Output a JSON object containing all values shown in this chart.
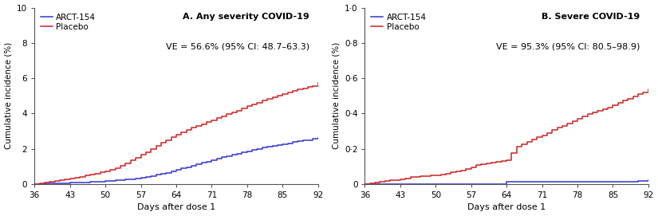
{
  "panel_a": {
    "title": "A. Any severity COVID-19",
    "ve_text": "VE = 56.6% (95% CI: 48.7–63.3)",
    "ylabel": "Cumulative incidence (%)",
    "xlabel": "Days after dose 1",
    "xlim": [
      36,
      92
    ],
    "ylim": [
      0,
      10
    ],
    "yticks": [
      0,
      2,
      4,
      6,
      8,
      10
    ],
    "ytick_labels": [
      "0",
      "2",
      "4",
      "6",
      "8",
      "10"
    ],
    "xticks": [
      36,
      43,
      50,
      57,
      64,
      71,
      78,
      85,
      92
    ],
    "vaccine_color": "#3333cc",
    "placebo_color": "#cc2222",
    "vaccine_label": "ARCT-154",
    "placebo_label": "Placebo",
    "vaccine_x": [
      36,
      37,
      38,
      39,
      40,
      41,
      42,
      43,
      44,
      45,
      46,
      47,
      48,
      49,
      50,
      51,
      52,
      53,
      54,
      55,
      56,
      57,
      58,
      59,
      60,
      61,
      62,
      63,
      64,
      65,
      66,
      67,
      68,
      69,
      70,
      71,
      72,
      73,
      74,
      75,
      76,
      77,
      78,
      79,
      80,
      81,
      82,
      83,
      84,
      85,
      86,
      87,
      88,
      89,
      90,
      91,
      92
    ],
    "vaccine_y": [
      0.0,
      0.01,
      0.02,
      0.03,
      0.04,
      0.05,
      0.06,
      0.07,
      0.08,
      0.09,
      0.1,
      0.11,
      0.13,
      0.14,
      0.16,
      0.18,
      0.2,
      0.22,
      0.25,
      0.28,
      0.31,
      0.35,
      0.4,
      0.46,
      0.52,
      0.58,
      0.64,
      0.72,
      0.8,
      0.88,
      0.96,
      1.04,
      1.12,
      1.2,
      1.28,
      1.36,
      1.44,
      1.52,
      1.59,
      1.65,
      1.72,
      1.79,
      1.86,
      1.93,
      1.99,
      2.05,
      2.11,
      2.17,
      2.22,
      2.27,
      2.32,
      2.37,
      2.42,
      2.46,
      2.5,
      2.55,
      2.6
    ],
    "placebo_x": [
      36,
      37,
      38,
      39,
      40,
      41,
      42,
      43,
      44,
      45,
      46,
      47,
      48,
      49,
      50,
      51,
      52,
      53,
      54,
      55,
      56,
      57,
      58,
      59,
      60,
      61,
      62,
      63,
      64,
      65,
      66,
      67,
      68,
      69,
      70,
      71,
      72,
      73,
      74,
      75,
      76,
      77,
      78,
      79,
      80,
      81,
      82,
      83,
      84,
      85,
      86,
      87,
      88,
      89,
      90,
      91,
      92
    ],
    "placebo_y": [
      0.0,
      0.05,
      0.09,
      0.13,
      0.17,
      0.21,
      0.25,
      0.3,
      0.36,
      0.42,
      0.48,
      0.54,
      0.6,
      0.66,
      0.72,
      0.82,
      0.92,
      1.04,
      1.18,
      1.33,
      1.48,
      1.65,
      1.82,
      2.0,
      2.18,
      2.35,
      2.5,
      2.65,
      2.8,
      2.95,
      3.07,
      3.18,
      3.29,
      3.4,
      3.51,
      3.63,
      3.74,
      3.85,
      3.95,
      4.05,
      4.16,
      4.28,
      4.4,
      4.51,
      4.62,
      4.72,
      4.82,
      4.91,
      5.0,
      5.1,
      5.18,
      5.27,
      5.35,
      5.43,
      5.5,
      5.57,
      5.72
    ]
  },
  "panel_b": {
    "title": "B. Severe COVID-19",
    "ve_text": "VE = 95.3% (95% CI: 80.5–98.9)",
    "ylabel": "Cumulative incidence (%)",
    "xlabel": "Days after dose 1",
    "xlim": [
      36,
      92
    ],
    "ylim": [
      0,
      1.0
    ],
    "yticks": [
      0,
      0.2,
      0.4,
      0.6,
      0.8,
      1.0
    ],
    "ytick_labels": [
      "0",
      "0·2",
      "0·4",
      "0·6",
      "0·8",
      "1·0"
    ],
    "xticks": [
      36,
      43,
      50,
      57,
      64,
      71,
      78,
      85,
      92
    ],
    "vaccine_color": "#3333cc",
    "placebo_color": "#cc2222",
    "vaccine_label": "ARCT-154",
    "placebo_label": "Placebo",
    "vaccine_x": [
      36,
      37,
      38,
      39,
      40,
      41,
      42,
      43,
      44,
      45,
      46,
      47,
      48,
      49,
      50,
      51,
      52,
      53,
      54,
      55,
      56,
      57,
      58,
      59,
      60,
      61,
      62,
      63,
      64,
      65,
      66,
      67,
      68,
      69,
      70,
      71,
      72,
      73,
      74,
      75,
      76,
      77,
      78,
      79,
      80,
      81,
      82,
      83,
      84,
      85,
      86,
      87,
      88,
      89,
      90,
      91,
      92
    ],
    "vaccine_y": [
      0.0,
      0.0,
      0.0,
      0.0,
      0.0,
      0.0,
      0.0,
      0.0,
      0.0,
      0.0,
      0.0,
      0.0,
      0.0,
      0.0,
      0.0,
      0.0,
      0.0,
      0.0,
      0.0,
      0.0,
      0.0,
      0.0,
      0.0,
      0.0,
      0.0,
      0.0,
      0.0,
      0.0,
      0.012,
      0.012,
      0.012,
      0.012,
      0.012,
      0.012,
      0.012,
      0.012,
      0.012,
      0.012,
      0.012,
      0.012,
      0.012,
      0.012,
      0.012,
      0.012,
      0.012,
      0.012,
      0.012,
      0.012,
      0.012,
      0.012,
      0.012,
      0.012,
      0.012,
      0.012,
      0.018,
      0.018,
      0.022
    ],
    "placebo_x": [
      36,
      37,
      38,
      39,
      40,
      41,
      42,
      43,
      44,
      45,
      46,
      47,
      48,
      49,
      50,
      51,
      52,
      53,
      54,
      55,
      56,
      57,
      58,
      59,
      60,
      61,
      62,
      63,
      64,
      65,
      66,
      67,
      68,
      69,
      70,
      71,
      72,
      73,
      74,
      75,
      76,
      77,
      78,
      79,
      80,
      81,
      82,
      83,
      84,
      85,
      86,
      87,
      88,
      89,
      90,
      91,
      92
    ],
    "placebo_y": [
      0.0,
      0.004,
      0.008,
      0.012,
      0.016,
      0.02,
      0.024,
      0.028,
      0.033,
      0.038,
      0.042,
      0.044,
      0.046,
      0.048,
      0.05,
      0.055,
      0.06,
      0.065,
      0.07,
      0.078,
      0.086,
      0.096,
      0.108,
      0.114,
      0.118,
      0.122,
      0.126,
      0.13,
      0.134,
      0.175,
      0.21,
      0.225,
      0.24,
      0.252,
      0.264,
      0.276,
      0.29,
      0.305,
      0.318,
      0.33,
      0.344,
      0.358,
      0.37,
      0.382,
      0.395,
      0.405,
      0.415,
      0.425,
      0.435,
      0.448,
      0.46,
      0.472,
      0.485,
      0.498,
      0.508,
      0.52,
      0.535
    ]
  },
  "fig_bg": "#ffffff",
  "axes_bg": "#ffffff",
  "spine_color": "#555555",
  "text_color": "#000000"
}
